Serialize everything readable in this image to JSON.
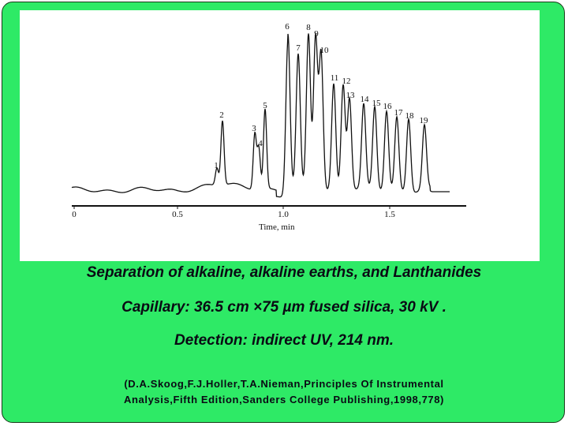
{
  "figure": {
    "x_ticks": [
      "0",
      "0.5",
      "1.0",
      "1.5"
    ],
    "x_label": "Time, min",
    "peak_labels": [
      "1",
      "2",
      "3",
      "4",
      "5",
      "6",
      "7",
      "8",
      "9",
      "10",
      "11",
      "12",
      "13",
      "14",
      "15",
      "16",
      "17",
      "18",
      "19"
    ]
  },
  "caption": {
    "line1": "Separation of alkaline, alkaline earths, and Lanthanides",
    "line2": "Capillary: 36.5 cm ×75 µm fused silica, 30 kV .",
    "line3": "Detection: indirect UV, 214 nm."
  },
  "citation": {
    "line1": "(D.A.Skoog,F.J.Holler,T.A.Nieman,Principles Of Instrumental",
    "line2": "Analysis,Fifth Edition,Sanders College Publishing,1998,778)"
  }
}
